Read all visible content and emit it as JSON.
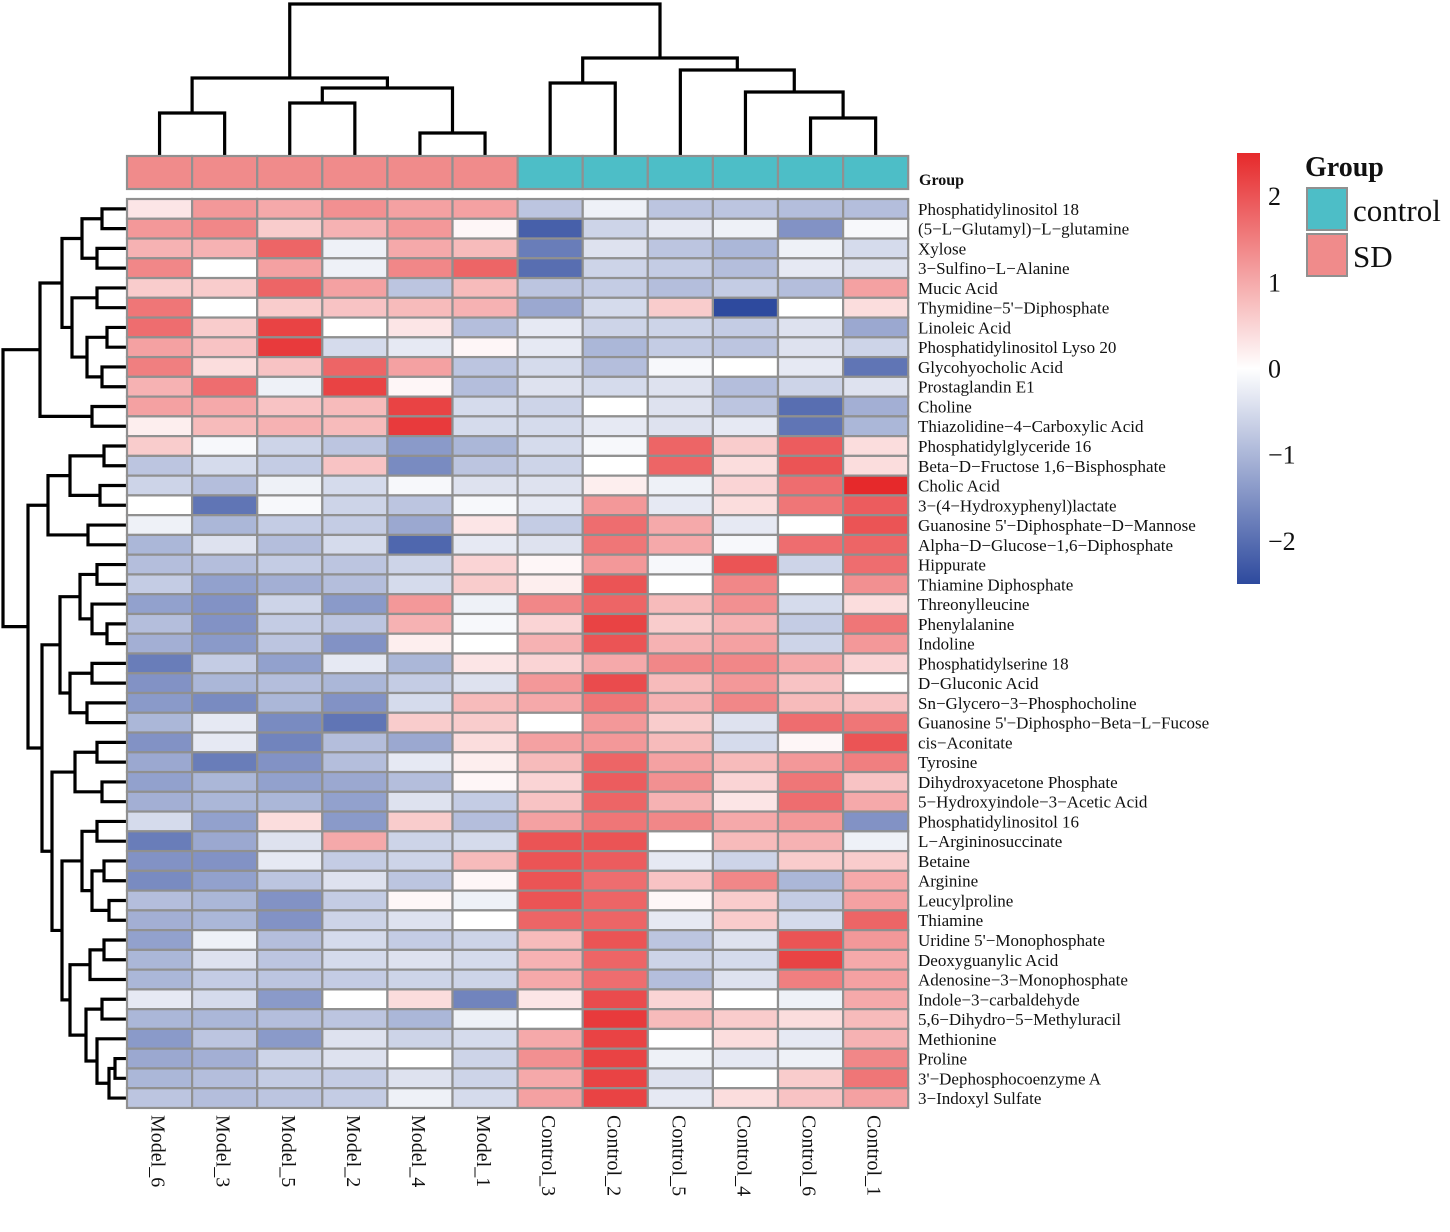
{
  "chart_data": {
    "type": "heatmap",
    "columns": [
      "Model_6",
      "Model_3",
      "Model_5",
      "Model_2",
      "Model_4",
      "Model_1",
      "Control_3",
      "Control_2",
      "Control_5",
      "Control_4",
      "Control_6",
      "Control_1"
    ],
    "rows": [
      "Phosphatidylinositol 18",
      "(5−L−Glutamyl)−L−glutamine",
      "Xylose",
      "3−Sulfino−L−Alanine",
      "Mucic Acid",
      "Thymidine−5'−Diphosphate",
      "Linoleic Acid",
      "Phosphatidylinositol Lyso 20",
      "Glycohyocholic Acid",
      "Prostaglandin E1",
      "Choline",
      "Thiazolidine−4−Carboxylic Acid",
      "Phosphatidylglyceride 16",
      "Beta−D−Fructose 1,6−Bisphosphate",
      "Cholic Acid",
      "3−(4−Hydroxyphenyl)lactate",
      "Guanosine 5'−Diphosphate−D−Mannose",
      "Alpha−D−Glucose−1,6−Diphosphate",
      "Hippurate",
      "Thiamine Diphosphate",
      "Threonylleucine",
      "Phenylalanine",
      "Indoline",
      "Phosphatidylserine 18",
      "D−Gluconic Acid",
      "Sn−Glycero−3−Phosphocholine",
      "Guanosine 5'−Diphospho−Beta−L−Fucose",
      "cis−Aconitate",
      "Tyrosine",
      "Dihydroxyacetone Phosphate",
      "5−Hydroxyindole−3−Acetic Acid",
      "Phosphatidylinositol 16",
      "L−Argininosuccinate",
      "Betaine",
      "Arginine",
      "Leucylproline",
      "Thiamine",
      "Uridine 5'−Monophosphate",
      "Deoxyguanylic Acid",
      "Adenosine−3−Monophosphate",
      "Indole−3−carbaldehyde",
      "5,6−Dihydro−5−Methyluracil",
      "Methionine",
      "Proline",
      "3'−Dephosphocoenzyme A",
      "3−Indoxyl Sulfate"
    ],
    "values": [
      [
        0.3,
        1.2,
        1.0,
        1.3,
        1.1,
        1.1,
        -0.8,
        -0.2,
        -0.8,
        -0.8,
        -0.9,
        -0.9
      ],
      [
        1.2,
        1.4,
        0.6,
        0.9,
        1.2,
        0.1,
        -2.2,
        -0.6,
        -0.3,
        -0.2,
        -1.5,
        -0.1
      ],
      [
        0.9,
        0.9,
        1.8,
        -0.2,
        1.0,
        0.8,
        -1.8,
        -0.4,
        -0.8,
        -1.0,
        -0.2,
        -0.5
      ],
      [
        1.4,
        0.0,
        1.1,
        -0.2,
        1.4,
        1.8,
        -2.0,
        -0.6,
        -0.7,
        -0.9,
        -0.3,
        -0.4
      ],
      [
        0.6,
        0.6,
        1.8,
        1.1,
        -0.8,
        0.8,
        -0.8,
        -0.7,
        -0.9,
        -0.7,
        -0.9,
        1.1
      ],
      [
        1.6,
        0.0,
        0.6,
        0.7,
        0.8,
        0.9,
        -1.2,
        -0.5,
        0.6,
        -2.5,
        0.0,
        0.4
      ],
      [
        1.7,
        0.6,
        2.2,
        0.0,
        0.3,
        -0.9,
        -0.3,
        -0.6,
        -0.6,
        -0.7,
        -0.4,
        -1.2
      ],
      [
        1.1,
        0.7,
        2.3,
        -0.5,
        -0.3,
        0.1,
        -0.3,
        -1.0,
        -0.7,
        -0.8,
        -0.4,
        -0.6
      ],
      [
        1.5,
        0.4,
        0.7,
        1.8,
        1.1,
        -0.8,
        -0.5,
        -0.9,
        -0.1,
        0.0,
        -0.3,
        -1.9
      ],
      [
        0.9,
        1.7,
        -0.2,
        2.2,
        0.1,
        -0.9,
        -0.4,
        -0.5,
        -0.4,
        -0.9,
        -0.6,
        -0.4
      ],
      [
        1.1,
        1.0,
        0.7,
        0.8,
        2.2,
        -0.5,
        -0.6,
        0.0,
        -0.4,
        -0.8,
        -2.0,
        -1.1
      ],
      [
        0.2,
        0.8,
        0.9,
        0.8,
        2.3,
        -0.5,
        -0.5,
        -0.3,
        -0.4,
        -0.3,
        -1.9,
        -1.0
      ],
      [
        0.6,
        -0.1,
        -0.6,
        -0.8,
        -1.4,
        -1.0,
        -0.5,
        -0.1,
        1.8,
        0.6,
        1.9,
        0.4
      ],
      [
        -0.8,
        -0.5,
        -0.7,
        0.7,
        -1.6,
        -0.8,
        -0.6,
        0.0,
        1.8,
        0.4,
        2.0,
        0.4
      ],
      [
        -0.6,
        -0.9,
        -0.2,
        -0.5,
        -0.1,
        -0.4,
        -0.4,
        0.2,
        -0.2,
        0.5,
        1.7,
        2.5
      ],
      [
        0.0,
        -1.9,
        -0.1,
        -0.6,
        -0.8,
        -0.1,
        -0.3,
        1.2,
        -0.3,
        0.4,
        1.6,
        1.9
      ],
      [
        -0.2,
        -1.0,
        -0.7,
        -0.7,
        -1.2,
        0.3,
        -0.7,
        1.7,
        1.0,
        -0.3,
        0.0,
        2.0
      ],
      [
        -1.0,
        -0.4,
        -0.9,
        -0.5,
        -2.1,
        -0.3,
        -0.4,
        1.6,
        1.0,
        -0.1,
        1.7,
        1.8
      ],
      [
        -0.9,
        -0.9,
        -0.7,
        -0.8,
        -0.6,
        0.5,
        0.1,
        1.2,
        -0.1,
        2.0,
        -0.6,
        1.7
      ],
      [
        -0.7,
        -1.3,
        -1.1,
        -0.9,
        -0.5,
        0.6,
        0.2,
        2.0,
        0.0,
        1.4,
        0.0,
        1.3
      ],
      [
        -1.3,
        -1.5,
        -0.6,
        -1.4,
        1.2,
        -0.2,
        1.4,
        1.8,
        0.8,
        1.3,
        -0.5,
        0.4
      ],
      [
        -0.9,
        -1.5,
        -0.7,
        -0.8,
        0.9,
        -0.1,
        0.5,
        2.2,
        0.6,
        0.9,
        -0.7,
        1.6
      ],
      [
        -1.1,
        -1.4,
        -0.8,
        -1.5,
        0.2,
        0.0,
        0.9,
        2.0,
        0.9,
        1.1,
        -0.6,
        1.2
      ],
      [
        -1.8,
        -0.7,
        -1.3,
        -0.3,
        -1.0,
        0.3,
        0.5,
        1.0,
        1.4,
        1.4,
        1.0,
        0.5
      ],
      [
        -1.5,
        -1.0,
        -0.9,
        -1.0,
        -0.7,
        -0.4,
        1.2,
        2.1,
        0.8,
        1.2,
        0.7,
        0.0
      ],
      [
        -1.4,
        -1.6,
        -1.0,
        -1.5,
        -0.5,
        0.8,
        1.0,
        1.6,
        0.9,
        1.4,
        0.8,
        0.7
      ],
      [
        -1.0,
        -0.3,
        -1.6,
        -1.9,
        0.6,
        0.6,
        0.0,
        1.2,
        0.6,
        -0.4,
        1.7,
        1.6
      ],
      [
        -1.5,
        -0.3,
        -1.7,
        -0.9,
        -1.2,
        0.4,
        1.1,
        1.2,
        0.8,
        -0.5,
        0.1,
        2.0
      ],
      [
        -1.2,
        -1.8,
        -1.5,
        -0.9,
        -0.3,
        0.2,
        0.8,
        1.8,
        1.1,
        0.8,
        1.2,
        1.5
      ],
      [
        -1.3,
        -1.0,
        -1.3,
        -1.2,
        -0.9,
        0.1,
        0.5,
        1.9,
        1.3,
        0.5,
        1.6,
        0.7
      ],
      [
        -1.1,
        -1.0,
        -1.0,
        -1.3,
        -0.4,
        -0.7,
        0.7,
        1.8,
        0.9,
        0.3,
        1.7,
        1.0
      ],
      [
        -0.5,
        -1.3,
        0.4,
        -1.4,
        0.6,
        -0.9,
        1.1,
        1.6,
        1.4,
        1.0,
        1.2,
        -1.5
      ],
      [
        -1.8,
        -1.2,
        -0.4,
        1.0,
        -0.6,
        -0.5,
        2.0,
        2.0,
        0.0,
        0.8,
        0.9,
        -0.2
      ],
      [
        -1.5,
        -1.5,
        -0.3,
        -0.7,
        -0.6,
        0.8,
        2.0,
        1.9,
        -0.3,
        -0.6,
        0.6,
        0.6
      ],
      [
        -1.6,
        -1.3,
        -0.8,
        -0.4,
        -0.8,
        0.1,
        2.0,
        1.7,
        0.7,
        1.4,
        -1.0,
        1.0
      ],
      [
        -0.9,
        -1.0,
        -1.5,
        -0.7,
        0.1,
        -0.2,
        2.0,
        1.8,
        0.1,
        0.6,
        -0.7,
        1.1
      ],
      [
        -1.1,
        -1.0,
        -1.5,
        -0.6,
        -0.4,
        0.0,
        1.8,
        1.8,
        -0.3,
        0.6,
        -0.5,
        1.8
      ],
      [
        -1.3,
        -0.2,
        -0.9,
        -0.5,
        -0.7,
        -0.6,
        0.8,
        2.0,
        -0.8,
        -0.4,
        2.0,
        1.2
      ],
      [
        -1.0,
        -0.4,
        -0.8,
        -0.5,
        -0.4,
        -0.5,
        0.9,
        1.8,
        -0.6,
        -0.5,
        2.2,
        1.0
      ],
      [
        -1.0,
        -0.7,
        -0.8,
        -0.7,
        -0.6,
        -0.6,
        1.0,
        1.7,
        -0.9,
        -0.4,
        1.5,
        1.1
      ],
      [
        -0.3,
        -0.5,
        -1.4,
        0.0,
        0.4,
        -1.7,
        0.3,
        2.1,
        0.5,
        0.0,
        -0.2,
        1.0
      ],
      [
        -1.0,
        -1.0,
        -0.9,
        -0.8,
        -1.0,
        -0.2,
        0.0,
        2.3,
        0.8,
        0.6,
        0.4,
        0.8
      ],
      [
        -1.4,
        -0.8,
        -1.4,
        -0.4,
        -0.6,
        -0.5,
        1.0,
        2.2,
        0.0,
        0.4,
        -0.3,
        0.9
      ],
      [
        -1.2,
        -1.1,
        -0.6,
        -0.4,
        0.0,
        -0.6,
        1.3,
        2.2,
        -0.2,
        -0.3,
        -0.2,
        1.4
      ],
      [
        -1.0,
        -0.9,
        -0.7,
        -0.7,
        -0.4,
        -0.6,
        1.0,
        2.2,
        -0.4,
        0.0,
        0.6,
        1.6
      ],
      [
        -0.8,
        -0.9,
        -0.8,
        -0.7,
        -0.2,
        -0.5,
        1.1,
        2.2,
        -0.3,
        0.4,
        0.7,
        1.1
      ]
    ],
    "group_annotation": {
      "label": "Group",
      "assignments": [
        "SD",
        "SD",
        "SD",
        "SD",
        "SD",
        "SD",
        "control",
        "control",
        "control",
        "control",
        "control",
        "control"
      ]
    },
    "legend": {
      "title": "Group",
      "items": [
        {
          "label": "control",
          "color": "#4dbec7"
        },
        {
          "label": "SD",
          "color": "#f08b8b"
        }
      ]
    },
    "colorbar": {
      "range": [
        -2.5,
        2.5
      ],
      "ticks": [
        -2,
        -1,
        0,
        1,
        2
      ],
      "tick_labels": [
        "−2",
        "−1",
        "0",
        "1",
        "2"
      ],
      "low_color": "#2e4a9e",
      "mid_color": "#ffffff",
      "high_color": "#e6292b"
    },
    "cell_border_color": "#909090",
    "dendrograms": "row and column hierarchical clustering trees"
  }
}
